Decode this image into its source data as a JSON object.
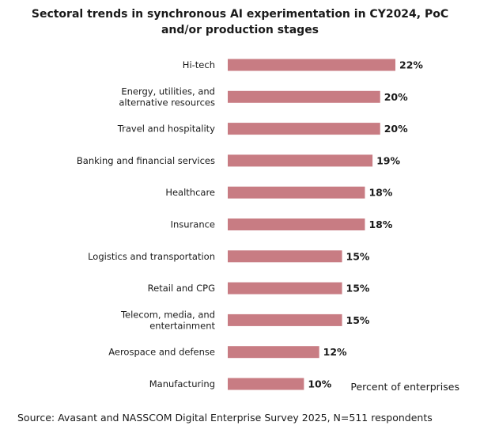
{
  "chart_data": {
    "type": "bar",
    "orientation": "horizontal",
    "title": "Sectoral trends in synchronous AI experimentation in CY2024, PoC and/or production stages",
    "categories": [
      "Hi-tech",
      "Energy, utilities, and alternative resources",
      "Travel and hospitality",
      "Banking and financial services",
      "Healthcare",
      "Insurance",
      "Logistics and transportation",
      "Retail and CPG",
      "Telecom, media, and entertainment",
      "Aerospace and defense",
      "Manufacturing"
    ],
    "values": [
      22,
      20,
      20,
      19,
      18,
      18,
      15,
      15,
      15,
      12,
      10
    ],
    "value_labels": [
      "22%",
      "20%",
      "20%",
      "19%",
      "18%",
      "18%",
      "15%",
      "15%",
      "15%",
      "12%",
      "10%"
    ],
    "unit_label": "Percent of enterprises",
    "xlim": [
      0,
      22
    ],
    "grid": false,
    "bar_color": "#c87c83"
  },
  "footer": {
    "source": "Source: Avasant and NASSCOM Digital Enterprise Survey 2025, N=511 respondents"
  }
}
